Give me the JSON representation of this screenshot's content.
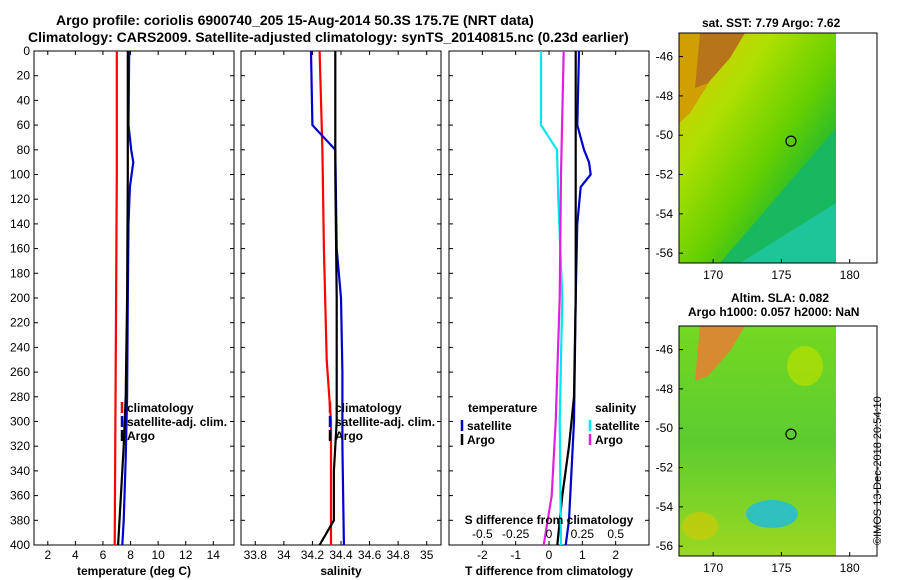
{
  "header": {
    "line1": "Argo profile: coriolis 6900740_205 15-Aug-2014 50.3S 175.7E (NRT data)",
    "line2": "Climatology: CARS2009. Satellite-adjusted climatology: synTS_20140815.nc (0.23d earlier)"
  },
  "colors": {
    "climatology": "#ff0000",
    "satellite": "#0000cc",
    "argo": "#000000",
    "satellite_salinity": "#00e5ee",
    "argo_salinity": "#e020e0"
  },
  "chart_data": [
    {
      "type": "line",
      "name": "temperature",
      "xlabel": "temperature (deg C)",
      "ylabel": "depth",
      "xlim": [
        1,
        15.5
      ],
      "ylim": [
        400,
        0
      ],
      "xticks": [
        2,
        4,
        6,
        8,
        10,
        12,
        14
      ],
      "yticks": [
        0,
        20,
        40,
        60,
        80,
        100,
        120,
        140,
        160,
        180,
        200,
        220,
        240,
        260,
        280,
        300,
        320,
        340,
        360,
        380,
        400
      ],
      "legend": [
        "climatology",
        "satellite-adj. clim.",
        "Argo"
      ],
      "legend_position": "lower-right",
      "series": [
        {
          "name": "climatology",
          "color": "#ff0000",
          "depth": [
            0,
            100,
            200,
            300,
            400
          ],
          "values": [
            7.0,
            7.0,
            6.95,
            6.9,
            6.85
          ]
        },
        {
          "name": "satellite-adj. clim.",
          "color": "#0000cc",
          "depth": [
            0,
            60,
            80,
            90,
            110,
            140,
            200,
            280,
            330,
            380,
            400
          ],
          "values": [
            7.9,
            7.85,
            8.05,
            8.2,
            7.95,
            7.85,
            7.8,
            7.75,
            7.65,
            7.5,
            7.4
          ]
        },
        {
          "name": "Argo",
          "color": "#000000",
          "depth": [
            0,
            100,
            200,
            280,
            320,
            360,
            400
          ],
          "values": [
            7.8,
            7.8,
            7.75,
            7.65,
            7.5,
            7.3,
            7.1
          ]
        }
      ]
    },
    {
      "type": "line",
      "name": "salinity",
      "xlabel": "salinity",
      "ylabel": "depth",
      "xlim": [
        33.7,
        35.1
      ],
      "ylim": [
        400,
        0
      ],
      "xticks": [
        33.8,
        34,
        34.2,
        34.4,
        34.6,
        34.8,
        35
      ],
      "legend": [
        "climatology",
        "satellite-adj. clim.",
        "Argo"
      ],
      "legend_position": "lower-right",
      "series": [
        {
          "name": "climatology",
          "color": "#ff0000",
          "depth": [
            0,
            80,
            160,
            250,
            300,
            340,
            400
          ],
          "values": [
            34.25,
            34.27,
            34.28,
            34.3,
            34.33,
            34.33,
            34.33
          ]
        },
        {
          "name": "satellite-adj. clim.",
          "color": "#0000cc",
          "depth": [
            0,
            60,
            80,
            160,
            200,
            260,
            320,
            400
          ],
          "values": [
            34.19,
            34.2,
            34.36,
            34.37,
            34.4,
            34.41,
            34.41,
            34.42
          ]
        },
        {
          "name": "Argo",
          "color": "#000000",
          "depth": [
            0,
            100,
            200,
            300,
            340,
            380,
            400
          ],
          "values": [
            34.36,
            34.36,
            34.37,
            34.37,
            34.35,
            34.35,
            34.25
          ]
        }
      ]
    },
    {
      "type": "line",
      "name": "difference from climatology",
      "xlabel": "T difference from climatology",
      "xlim": [
        -3,
        3
      ],
      "xticks": [
        -2,
        -1,
        0,
        1,
        2
      ],
      "secondary_xlabel": "S difference from climatology",
      "secondary_xlim": [
        -0.75,
        0.75
      ],
      "secondary_xticks": [
        -0.5,
        -0.25,
        0,
        0.25,
        0.5
      ],
      "secondary_tick_labels": [
        "-0.5",
        "-0.25",
        "0",
        "0.25",
        "0.5"
      ],
      "legend_temperature": {
        "title": "temperature",
        "items": [
          "satellite",
          "Argo"
        ]
      },
      "legend_salinity": {
        "title": "salinity",
        "items": [
          "satellite",
          "Argo"
        ]
      },
      "series": [
        {
          "name": "temperature satellite",
          "color": "#0000cc",
          "depth": [
            0,
            60,
            80,
            90,
            100,
            110,
            140,
            200,
            300,
            380,
            400
          ],
          "values": [
            0.9,
            0.85,
            1.05,
            1.2,
            1.25,
            0.95,
            0.85,
            0.8,
            0.75,
            0.6,
            0.5
          ]
        },
        {
          "name": "temperature Argo",
          "color": "#000000",
          "depth": [
            0,
            100,
            200,
            280,
            320,
            360,
            400
          ],
          "values": [
            0.8,
            0.8,
            0.8,
            0.75,
            0.6,
            0.4,
            0.25
          ]
        },
        {
          "name": "salinity satellite",
          "color": "#00e5ee",
          "depth": [
            0,
            60,
            80,
            120,
            200,
            300,
            400
          ],
          "values": [
            -0.06,
            -0.06,
            0.06,
            0.07,
            0.1,
            0.08,
            0.09
          ]
        },
        {
          "name": "salinity Argo",
          "color": "#e020e0",
          "depth": [
            0,
            100,
            200,
            300,
            360,
            400
          ],
          "values": [
            0.11,
            0.09,
            0.08,
            0.05,
            0.02,
            -0.04
          ]
        }
      ]
    },
    {
      "type": "heatmap",
      "name": "sea surface temperature map",
      "title": "sat. SST: 7.79 Argo: 7.62",
      "xticks": [
        170,
        175,
        180
      ],
      "yticks": [
        -46,
        -48,
        -50,
        -52,
        -54,
        -56
      ],
      "xlim": [
        167.5,
        182
      ],
      "ylim": [
        -56.5,
        -44.8
      ],
      "marker": {
        "lon": 175.7,
        "lat": -50.3
      }
    },
    {
      "type": "heatmap",
      "name": "altimetry sea level anomaly map",
      "title_line1": "Altim. SLA: 0.082",
      "title_line2": "Argo h1000: 0.057 h2000: NaN",
      "xticks": [
        170,
        175,
        180
      ],
      "yticks": [
        -46,
        -48,
        -50,
        -52,
        -54,
        -56
      ],
      "xlim": [
        167.5,
        182
      ],
      "ylim": [
        -56.5,
        -44.8
      ],
      "marker": {
        "lon": 175.7,
        "lat": -50.3
      }
    }
  ],
  "footer": {
    "stamp": "©IMOS 13-Dec-2018 20:54:10"
  }
}
